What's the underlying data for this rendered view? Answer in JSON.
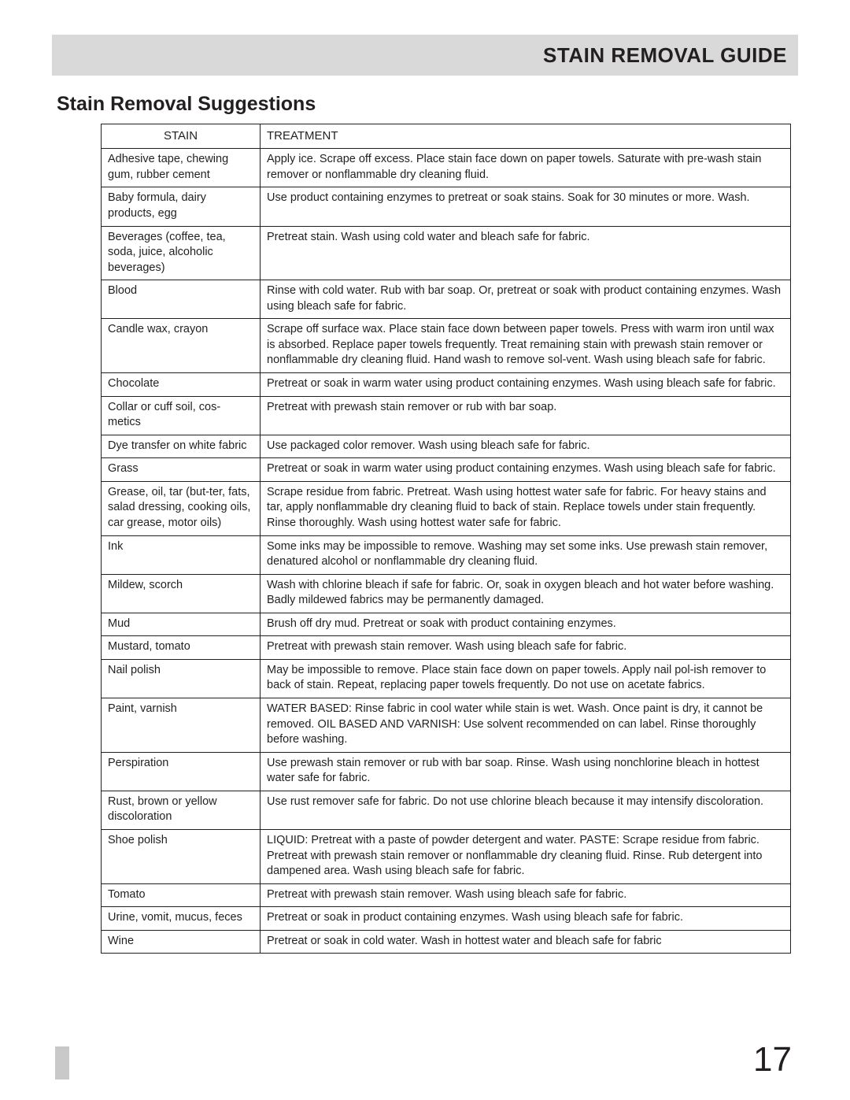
{
  "header": {
    "title": "STAIN REMOVAL GUIDE"
  },
  "subtitle": "Stain Removal Suggestions",
  "page_number": "17",
  "table": {
    "columns": [
      "STAIN",
      "TREATMENT"
    ],
    "rows": [
      {
        "stain": "Adhesive tape, chewing gum, rubber cement",
        "treatment": "Apply ice. Scrape off excess. Place stain face down on paper towels. Saturate with pre-wash stain remover or nonflammable dry cleaning fluid."
      },
      {
        "stain": "Baby formula, dairy products, egg",
        "treatment": "Use product containing enzymes to pretreat or soak stains. Soak for 30 minutes or more. Wash."
      },
      {
        "stain": "Beverages (coffee, tea, soda, juice, alcoholic beverages)",
        "treatment": "Pretreat stain. Wash using cold water and bleach safe for fabric."
      },
      {
        "stain": "Blood",
        "treatment": "Rinse with cold water. Rub with bar soap. Or, pretreat or soak with product containing enzymes. Wash using bleach safe for fabric."
      },
      {
        "stain": "Candle wax, crayon",
        "treatment": "Scrape off surface wax. Place stain face down between paper towels. Press with warm iron until wax is absorbed. Replace paper towels frequently. Treat remaining stain with prewash stain remover or nonflammable dry cleaning fluid. Hand wash to remove sol-vent. Wash using bleach safe for fabric."
      },
      {
        "stain": "Chocolate",
        "treatment": "Pretreat or soak in warm water using product containing enzymes. Wash using bleach safe for fabric."
      },
      {
        "stain": "Collar or cuff soil, cos-metics",
        "treatment": "Pretreat with prewash stain remover or rub with bar soap."
      },
      {
        "stain": "Dye transfer on white fabric",
        "treatment": "Use packaged color remover. Wash using bleach safe for fabric."
      },
      {
        "stain": "Grass",
        "treatment": "Pretreat or soak in warm water using product containing enzymes. Wash using bleach safe for fabric."
      },
      {
        "stain": "Grease, oil, tar (but-ter, fats, salad dressing, cooking oils, car grease, motor oils)",
        "treatment": "Scrape residue from fabric. Pretreat. Wash using hottest water safe for fabric. For heavy stains and tar, apply nonflammable dry cleaning fluid to back of stain. Replace towels under stain frequently. Rinse thoroughly. Wash using hottest water safe for fabric."
      },
      {
        "stain": "Ink",
        "treatment": "Some inks may be impossible to remove. Washing may set some inks. Use prewash stain remover, denatured alcohol or nonflammable dry cleaning fluid."
      },
      {
        "stain": "Mildew, scorch",
        "treatment": "Wash with chlorine bleach if safe for fabric. Or, soak in oxygen bleach and hot water before washing. Badly mildewed fabrics may be permanently damaged."
      },
      {
        "stain": "Mud",
        "treatment": "Brush off dry mud. Pretreat or soak with product containing enzymes."
      },
      {
        "stain": "Mustard, tomato",
        "treatment": "Pretreat with prewash stain remover. Wash using bleach safe for fabric."
      },
      {
        "stain": "Nail polish",
        "treatment": "May be impossible to remove. Place stain face down on paper towels. Apply nail pol-ish remover to back of stain. Repeat, replacing paper towels frequently. Do not use on acetate fabrics."
      },
      {
        "stain": "Paint, varnish",
        "treatment": "WATER BASED: Rinse fabric in cool water while stain is wet. Wash. Once paint is dry, it cannot be removed. OIL BASED AND VARNISH: Use solvent recommended on can label. Rinse thoroughly before washing."
      },
      {
        "stain": "Perspiration",
        "treatment": "Use prewash stain remover or rub with bar soap. Rinse. Wash using nonchlorine bleach in hottest water safe for fabric."
      },
      {
        "stain": "Rust, brown or yellow discoloration",
        "treatment": "Use rust remover safe for fabric. Do not use chlorine bleach because it may intensify discoloration."
      },
      {
        "stain": "Shoe polish",
        "treatment": "LIQUID: Pretreat with a paste of powder detergent and water. PASTE: Scrape residue from fabric. Pretreat with prewash stain remover or nonflammable dry cleaning fluid. Rinse. Rub detergent into dampened area. Wash using bleach safe for fabric."
      },
      {
        "stain": "Tomato",
        "treatment": "Pretreat with prewash stain remover. Wash using bleach safe for fabric."
      },
      {
        "stain": "Urine, vomit, mucus, feces",
        "treatment": "Pretreat or soak in product containing enzymes. Wash using bleach safe for fabric."
      },
      {
        "stain": "Wine",
        "treatment": "Pretreat or soak in cold water. Wash in hottest water and bleach safe for fabric"
      }
    ]
  },
  "colors": {
    "header_bg": "#d9d9d9",
    "text": "#231f20",
    "border": "#231f20",
    "footer_tick": "#c9c9c9",
    "background": "#ffffff"
  }
}
